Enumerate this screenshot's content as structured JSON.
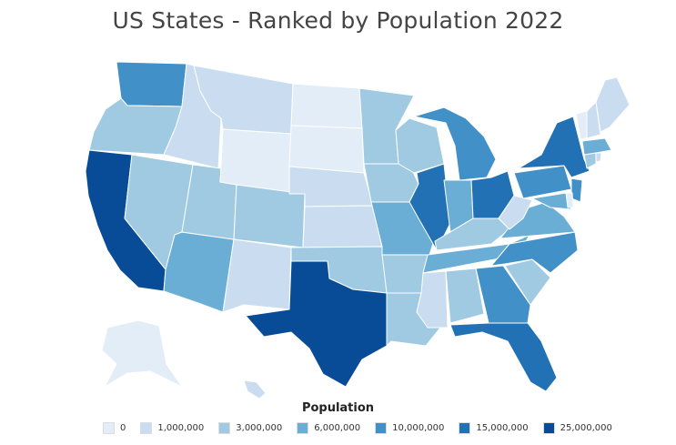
{
  "title": "US States - Ranked by Population 2022",
  "legend": {
    "title": "Population",
    "items": [
      {
        "label": "0",
        "color": "#e3edf8"
      },
      {
        "label": "1,000,000",
        "color": "#c9dcf0"
      },
      {
        "label": "3,000,000",
        "color": "#9fcae2"
      },
      {
        "label": "6,000,000",
        "color": "#6aaed6"
      },
      {
        "label": "10,000,000",
        "color": "#4190c8"
      },
      {
        "label": "15,000,000",
        "color": "#2271b5"
      },
      {
        "label": "25,000,000",
        "color": "#084c98"
      }
    ]
  },
  "states": [
    {
      "id": "WA",
      "tier": 4
    },
    {
      "id": "OR",
      "tier": 2
    },
    {
      "id": "CA",
      "tier": 6
    },
    {
      "id": "ID",
      "tier": 1
    },
    {
      "id": "NV",
      "tier": 2
    },
    {
      "id": "AZ",
      "tier": 3
    },
    {
      "id": "UT",
      "tier": 2
    },
    {
      "id": "MT",
      "tier": 1
    },
    {
      "id": "WY",
      "tier": 0
    },
    {
      "id": "CO",
      "tier": 2
    },
    {
      "id": "NM",
      "tier": 1
    },
    {
      "id": "ND",
      "tier": 0
    },
    {
      "id": "SD",
      "tier": 0
    },
    {
      "id": "NE",
      "tier": 1
    },
    {
      "id": "KS",
      "tier": 1
    },
    {
      "id": "OK",
      "tier": 2
    },
    {
      "id": "TX",
      "tier": 6
    },
    {
      "id": "MN",
      "tier": 2
    },
    {
      "id": "IA",
      "tier": 2
    },
    {
      "id": "MO",
      "tier": 3
    },
    {
      "id": "AR",
      "tier": 2
    },
    {
      "id": "LA",
      "tier": 2
    },
    {
      "id": "WI",
      "tier": 2
    },
    {
      "id": "IL",
      "tier": 5
    },
    {
      "id": "MI",
      "tier": 4
    },
    {
      "id": "IN",
      "tier": 3
    },
    {
      "id": "OH",
      "tier": 5
    },
    {
      "id": "KY",
      "tier": 2
    },
    {
      "id": "TN",
      "tier": 3
    },
    {
      "id": "MS",
      "tier": 1
    },
    {
      "id": "AL",
      "tier": 2
    },
    {
      "id": "GA",
      "tier": 4
    },
    {
      "id": "FL",
      "tier": 5
    },
    {
      "id": "SC",
      "tier": 2
    },
    {
      "id": "NC",
      "tier": 4
    },
    {
      "id": "VA",
      "tier": 3
    },
    {
      "id": "WV",
      "tier": 1
    },
    {
      "id": "PA",
      "tier": 4
    },
    {
      "id": "NY",
      "tier": 5
    },
    {
      "id": "NJ",
      "tier": 4
    },
    {
      "id": "MD",
      "tier": 3
    },
    {
      "id": "DE",
      "tier": 0
    },
    {
      "id": "CT",
      "tier": 2
    },
    {
      "id": "RI",
      "tier": 1
    },
    {
      "id": "MA",
      "tier": 3
    },
    {
      "id": "VT",
      "tier": 0
    },
    {
      "id": "NH",
      "tier": 1
    },
    {
      "id": "ME",
      "tier": 1
    },
    {
      "id": "AK",
      "tier": 0
    },
    {
      "id": "HI",
      "tier": 1
    }
  ]
}
